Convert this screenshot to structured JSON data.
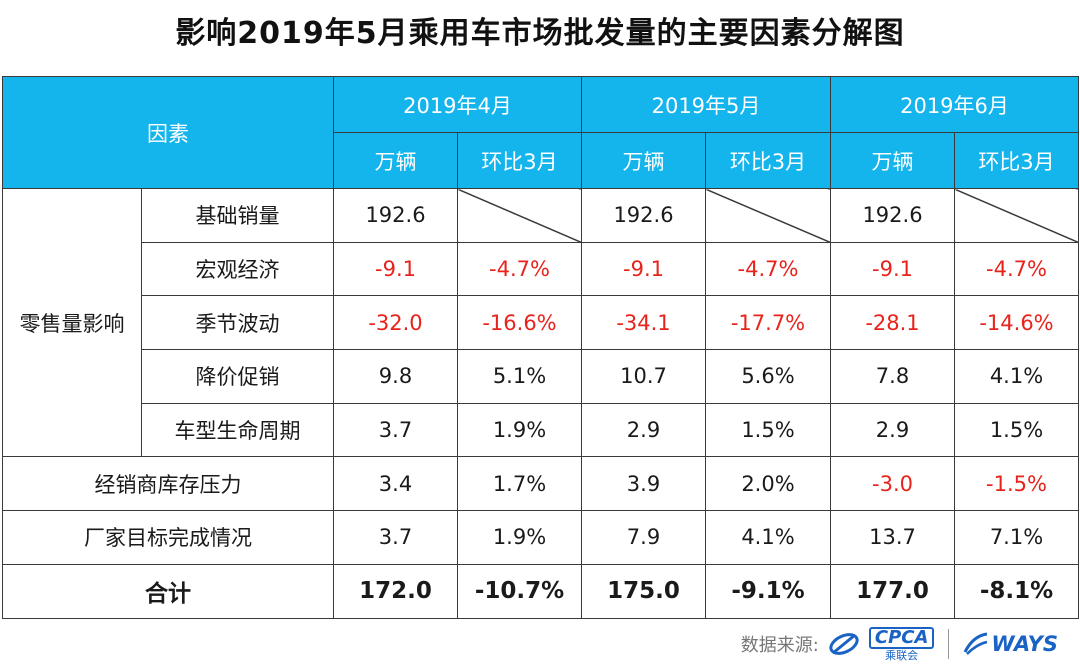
{
  "title": "影响2019年5月乘用车市场批发量的主要因素分解图",
  "header": {
    "factor": "因素",
    "months": [
      "2019年4月",
      "2019年5月",
      "2019年6月"
    ],
    "unit": "万辆",
    "mom": "环比3月"
  },
  "group_label": "零售量影响",
  "rows": [
    {
      "label": "基础销量",
      "values": [
        "192.6",
        "",
        "192.6",
        "",
        "192.6",
        ""
      ]
    },
    {
      "label": "宏观经济",
      "values": [
        "-9.1",
        "-4.7%",
        "-9.1",
        "-4.7%",
        "-9.1",
        "-4.7%"
      ]
    },
    {
      "label": "季节波动",
      "values": [
        "-32.0",
        "-16.6%",
        "-34.1",
        "-17.7%",
        "-28.1",
        "-14.6%"
      ]
    },
    {
      "label": "降价促销",
      "values": [
        "9.8",
        "5.1%",
        "10.7",
        "5.6%",
        "7.8",
        "4.1%"
      ]
    },
    {
      "label": "车型生命周期",
      "values": [
        "3.7",
        "1.9%",
        "2.9",
        "1.5%",
        "2.9",
        "1.5%"
      ]
    },
    {
      "label": "经销商库存压力",
      "values": [
        "3.4",
        "1.7%",
        "3.9",
        "2.0%",
        "-3.0",
        "-1.5%"
      ]
    },
    {
      "label": "厂家目标完成情况",
      "values": [
        "3.7",
        "1.9%",
        "7.9",
        "4.1%",
        "13.7",
        "7.1%"
      ]
    }
  ],
  "total": {
    "label": "合计",
    "values": [
      "172.0",
      "-10.7%",
      "175.0",
      "-9.1%",
      "177.0",
      "-8.1%"
    ]
  },
  "footer": {
    "source_label": "数据来源:",
    "cpca_text": "CPCA",
    "cpca_sub": "乘联会",
    "ways_text": "WAYS"
  },
  "colors": {
    "header_bg": "#14b4ec",
    "negative": "#e8231c",
    "brand_blue": "#1a63c4"
  }
}
